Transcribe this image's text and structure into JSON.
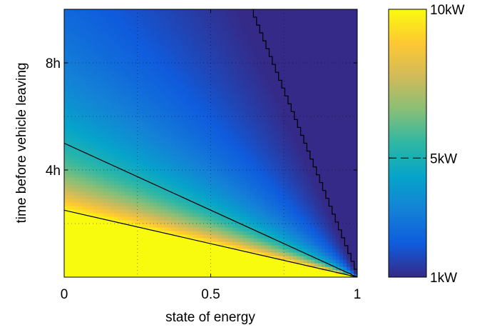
{
  "chart_data": {
    "type": "heatmap",
    "title": "",
    "xlabel": "state of energy",
    "ylabel": "time before vehicle leaving",
    "xlim": [
      0,
      1
    ],
    "ylim": [
      0,
      10
    ],
    "x_ticks": [
      {
        "value": 0,
        "label": "0"
      },
      {
        "value": 0.5,
        "label": "0.5"
      },
      {
        "value": 1,
        "label": "1"
      }
    ],
    "y_ticks": [
      {
        "value": 4,
        "label": "4h"
      },
      {
        "value": 8,
        "label": "8h"
      }
    ],
    "grid": true,
    "x_grid": [
      0.25,
      0.5,
      0.75
    ],
    "y_grid": [
      2,
      4,
      6,
      8
    ],
    "colorbar": {
      "min": 1,
      "max": 10,
      "ticks": [
        {
          "value": 10,
          "label": "10kW"
        },
        {
          "value": 5,
          "label": "5kW"
        },
        {
          "value": 1,
          "label": "1kW"
        }
      ],
      "colormap": "parula",
      "colors": [
        "#352a87",
        "#0f5cdd",
        "#1481d6",
        "#06a4ca",
        "#2eb7a4",
        "#87bf77",
        "#d1bb59",
        "#fec832",
        "#f9fb0e"
      ]
    },
    "contours": [
      {
        "level": 10,
        "points": [
          [
            0,
            2.5
          ],
          [
            1,
            0
          ]
        ]
      },
      {
        "level": 5,
        "points": [
          [
            0,
            5
          ],
          [
            1,
            0
          ]
        ]
      },
      {
        "level": 2,
        "points": [
          [
            0.635,
            10
          ],
          [
            1,
            0
          ]
        ],
        "stepped": true
      }
    ]
  }
}
